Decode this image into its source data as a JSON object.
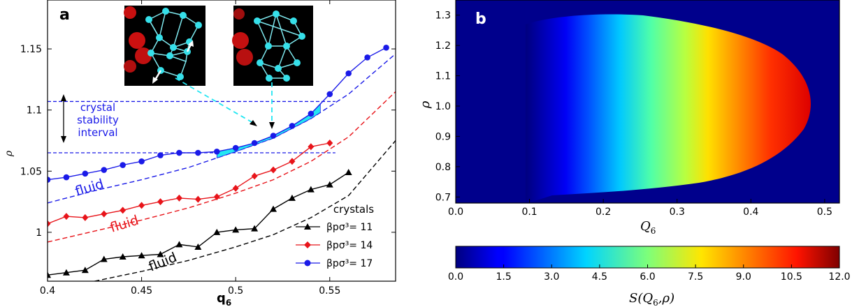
{
  "colors": {
    "black": "#000000",
    "red": "#e8141a",
    "blue": "#1a1ae8",
    "cyan": "#22e6f2"
  },
  "chart_data": [
    {
      "panel": "a",
      "type": "line",
      "xlabel": "q",
      "xlabel_sub": "6",
      "ylabel": "ρ",
      "xlim": [
        0.4,
        0.585
      ],
      "ylim": [
        0.96,
        1.19
      ],
      "xticks": [
        "0.4",
        "0.45",
        "0.5",
        "0.55"
      ],
      "xtick_values": [
        0.4,
        0.45,
        0.5,
        0.55
      ],
      "yticks": [
        "1",
        "1.05",
        "1.1",
        "1.15"
      ],
      "ytick_values": [
        1.0,
        1.05,
        1.1,
        1.15
      ],
      "legend_title": "crystals",
      "legend_position": "bottom-right",
      "series": [
        {
          "name": "βpσ³= 11",
          "color": "#000000",
          "marker": "triangle",
          "x": [
            0.4,
            0.41,
            0.42,
            0.43,
            0.44,
            0.45,
            0.46,
            0.47,
            0.48,
            0.49,
            0.5,
            0.51,
            0.52,
            0.53,
            0.54,
            0.55,
            0.56
          ],
          "y": [
            0.965,
            0.967,
            0.969,
            0.978,
            0.98,
            0.981,
            0.982,
            0.99,
            0.988,
            1.0,
            1.002,
            1.003,
            1.019,
            1.028,
            1.035,
            1.039,
            1.049
          ]
        },
        {
          "name": "βpσ³= 14",
          "color": "#e8141a",
          "marker": "diamond",
          "x": [
            0.4,
            0.41,
            0.42,
            0.43,
            0.44,
            0.45,
            0.46,
            0.47,
            0.48,
            0.49,
            0.5,
            0.51,
            0.52,
            0.53,
            0.54,
            0.55
          ],
          "y": [
            1.007,
            1.013,
            1.012,
            1.015,
            1.018,
            1.022,
            1.025,
            1.028,
            1.027,
            1.029,
            1.036,
            1.046,
            1.051,
            1.058,
            1.07,
            1.073
          ]
        },
        {
          "name": "βpσ³= 17",
          "color": "#1a1ae8",
          "marker": "circle",
          "x": [
            0.4,
            0.41,
            0.42,
            0.43,
            0.44,
            0.45,
            0.46,
            0.47,
            0.48,
            0.49,
            0.5,
            0.51,
            0.52,
            0.53,
            0.54,
            0.55,
            0.56,
            0.57,
            0.58
          ],
          "y": [
            1.043,
            1.045,
            1.048,
            1.051,
            1.055,
            1.058,
            1.063,
            1.065,
            1.065,
            1.066,
            1.069,
            1.073,
            1.079,
            1.087,
            1.097,
            1.113,
            1.13,
            1.143,
            1.151
          ]
        }
      ],
      "fluid_curves": [
        {
          "color": "#000000",
          "x": [
            0.425,
            0.45,
            0.475,
            0.5,
            0.52,
            0.54,
            0.56,
            0.585
          ],
          "y": [
            0.96,
            0.968,
            0.977,
            0.988,
            0.998,
            1.012,
            1.03,
            1.075
          ]
        },
        {
          "color": "#e8141a",
          "x": [
            0.4,
            0.425,
            0.45,
            0.475,
            0.5,
            0.52,
            0.54,
            0.56,
            0.585
          ],
          "y": [
            0.992,
            1.001,
            1.01,
            1.02,
            1.032,
            1.043,
            1.058,
            1.078,
            1.115
          ]
        },
        {
          "color": "#1a1ae8",
          "x": [
            0.4,
            0.425,
            0.45,
            0.475,
            0.5,
            0.52,
            0.54,
            0.56,
            0.585
          ],
          "y": [
            1.024,
            1.034,
            1.043,
            1.053,
            1.066,
            1.077,
            1.093,
            1.113,
            1.146
          ]
        }
      ],
      "fluid_labels": [
        "fluid",
        "fluid",
        "fluid"
      ],
      "stability_lines_y": [
        1.065,
        1.107
      ],
      "stability_label": [
        "crystal",
        "stability",
        "interval"
      ]
    },
    {
      "panel": "b",
      "type": "heatmap",
      "xlabel": "Q",
      "xlabel_sub": "6",
      "ylabel": "ρ",
      "xlim": [
        0.0,
        0.52
      ],
      "ylim": [
        0.68,
        1.35
      ],
      "xticks": [
        "0.0",
        "0.1",
        "0.2",
        "0.3",
        "0.4",
        "0.5"
      ],
      "xtick_values": [
        0.0,
        0.1,
        0.2,
        0.3,
        0.4,
        0.5
      ],
      "yticks": [
        "0.7",
        "0.8",
        "0.9",
        "1.0",
        "1.1",
        "1.2",
        "1.3"
      ],
      "ytick_values": [
        0.7,
        0.8,
        0.9,
        1.0,
        1.1,
        1.2,
        1.3
      ],
      "colormap": "jet",
      "colorbar_label": "S(Q",
      "colorbar_label_sub": "6",
      "colorbar_label_end": ",ρ)",
      "colorbar_range": [
        0.0,
        12.0
      ],
      "colorbar_ticks": [
        "0.0",
        "1.5",
        "3.0",
        "4.5",
        "6.0",
        "7.5",
        "9.0",
        "10.5",
        "12.0"
      ],
      "colorbar_tick_values": [
        0.0,
        1.5,
        3.0,
        4.5,
        6.0,
        7.5,
        9.0,
        10.5,
        12.0
      ]
    }
  ],
  "panel_labels": {
    "a": "a",
    "b": "b"
  }
}
